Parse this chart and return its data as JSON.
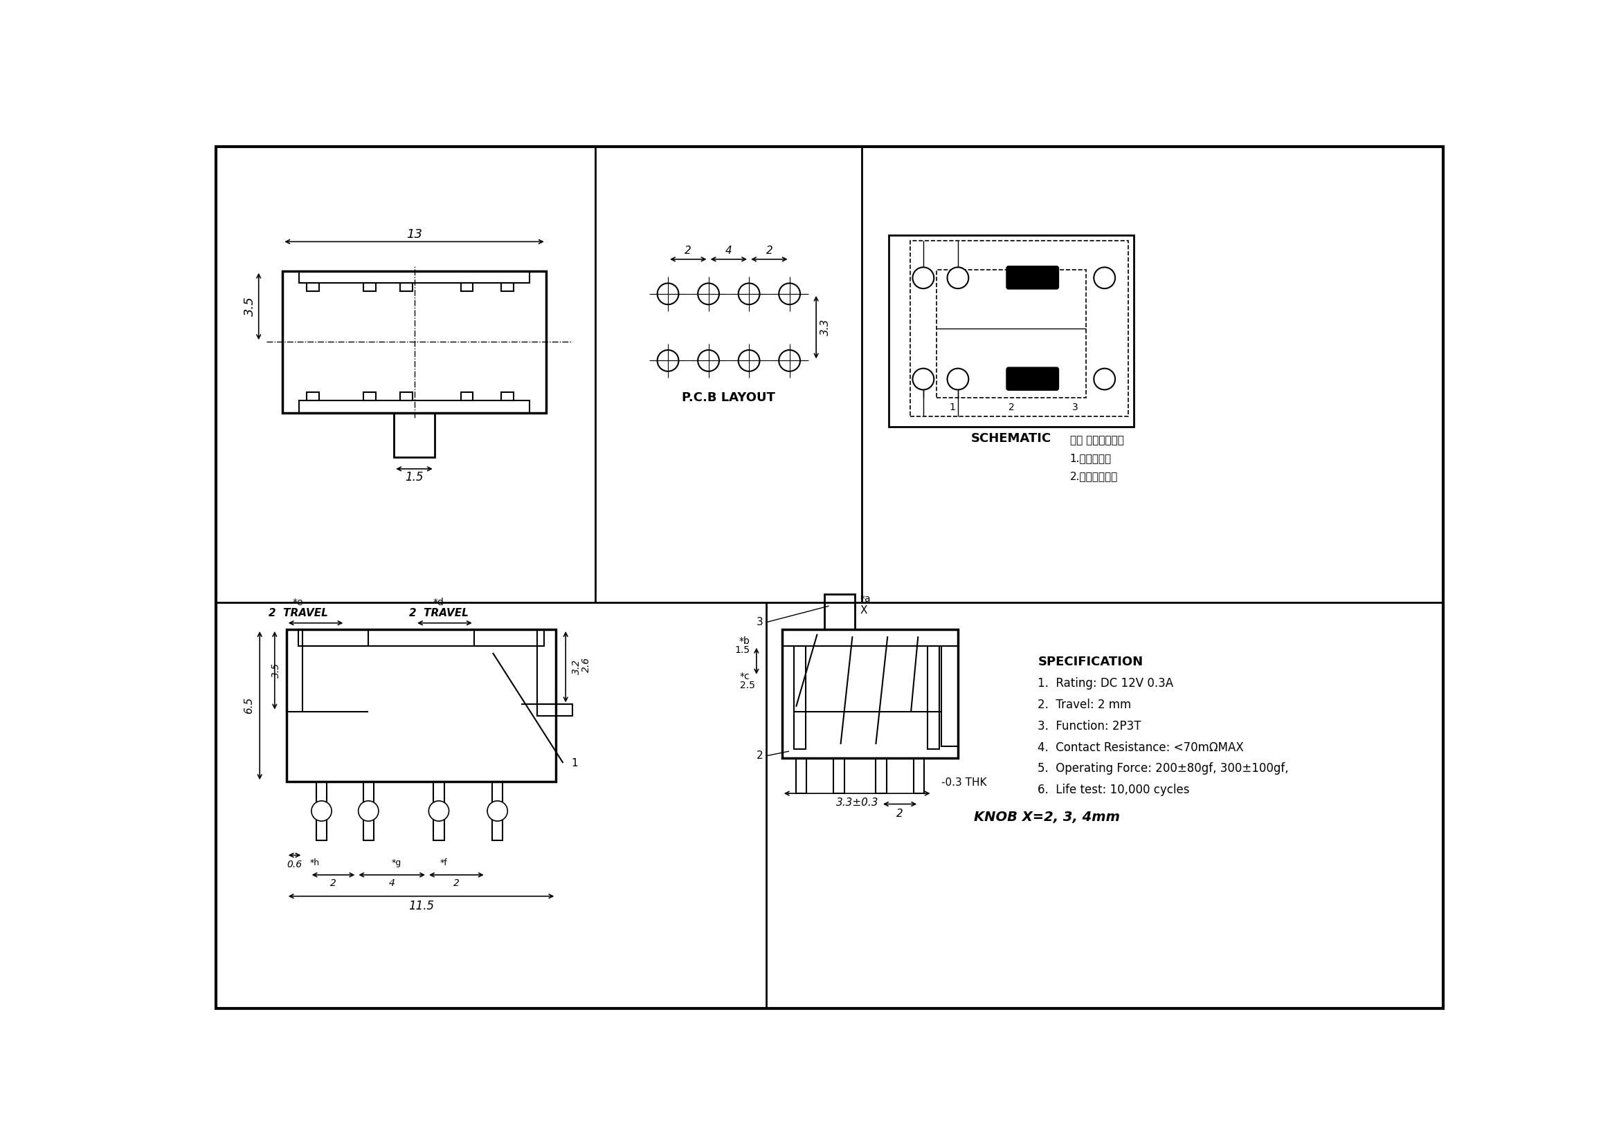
{
  "bg_color": "#ffffff",
  "spec_lines": [
    "SPECIFICATION",
    "1.  Rating: DC 12V 0.3A",
    "2.  Travel: 2 mm",
    "3.  Function: 2P3T",
    "4.  Contact Resistance: <70mΩMAX",
    "5.  Operating Force: 200±80gf, 300±100gf,",
    "6.  Life test: 10,000 cycles"
  ],
  "note_lines": [
    "注： 接触片分两种",
    "1.锻锂接触片",
    "2.磷锂接触弹线"
  ],
  "knob_text": "KNOB X=2, 3, 4mm",
  "pcb_label": "P.C.B LAYOUT",
  "schematic_label": "SCHEMATIC"
}
